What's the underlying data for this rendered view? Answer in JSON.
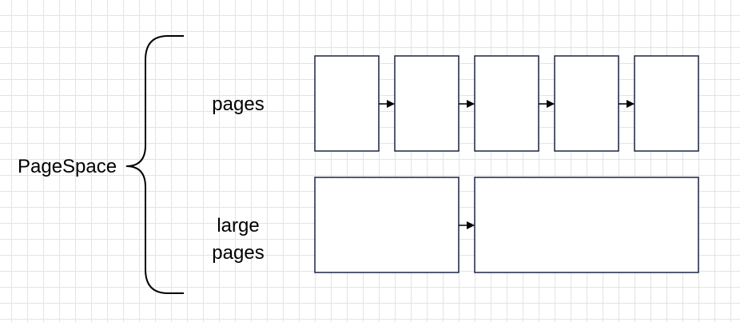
{
  "diagram": {
    "root_label": "PageSpace",
    "groups": [
      {
        "label": "pages",
        "block_count": 5
      },
      {
        "label": "large pages",
        "block_count": 2
      }
    ],
    "colors": {
      "block_stroke": "#1a2447",
      "line": "#000000",
      "grid": "#e3e3e3"
    }
  }
}
